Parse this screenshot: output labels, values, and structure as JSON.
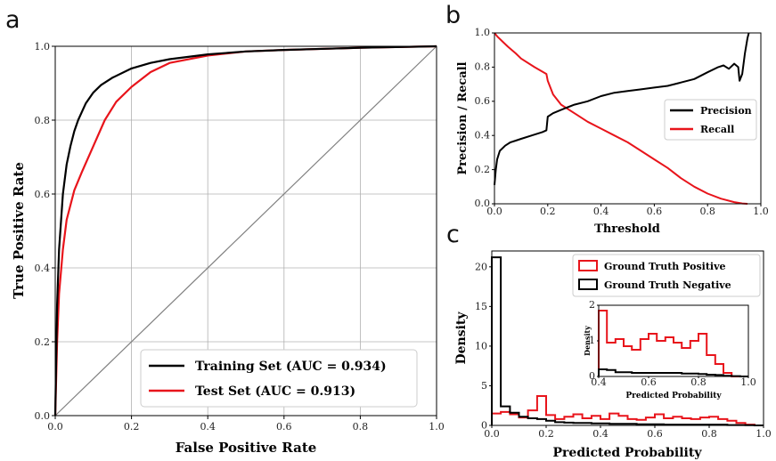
{
  "colors": {
    "train": "#000000",
    "test": "#e8141b",
    "precision": "#000000",
    "recall": "#e8141b",
    "positive": "#e8141b",
    "negative": "#000000",
    "grid": "#b0b0b0",
    "diagonal": "#808080"
  },
  "chart_data": [
    {
      "panel": "a",
      "type": "line",
      "xlabel": "False Positive Rate",
      "ylabel": "True Positive Rate",
      "xlim": [
        0,
        1
      ],
      "ylim": [
        0,
        1
      ],
      "xticks": [
        "0.0",
        "0.2",
        "0.4",
        "0.6",
        "0.8",
        "1.0"
      ],
      "yticks": [
        "0.0",
        "0.2",
        "0.4",
        "0.6",
        "0.8",
        "1.0"
      ],
      "grid": true,
      "legend_position": "lower-right",
      "series": [
        {
          "name": "Training Set (AUC = 0.934)",
          "x": [
            0,
            0.005,
            0.01,
            0.02,
            0.03,
            0.04,
            0.05,
            0.06,
            0.08,
            0.1,
            0.12,
            0.15,
            0.2,
            0.25,
            0.3,
            0.4,
            0.5,
            0.6,
            0.8,
            1.0
          ],
          "y": [
            0,
            0.3,
            0.45,
            0.6,
            0.68,
            0.73,
            0.77,
            0.8,
            0.845,
            0.875,
            0.895,
            0.915,
            0.94,
            0.955,
            0.965,
            0.978,
            0.986,
            0.99,
            0.996,
            1.0
          ]
        },
        {
          "name": "Test Set (AUC = 0.913)",
          "x": [
            0,
            0.005,
            0.01,
            0.02,
            0.03,
            0.05,
            0.07,
            0.1,
            0.13,
            0.16,
            0.2,
            0.25,
            0.3,
            0.4,
            0.5,
            0.6,
            0.8,
            1.0
          ],
          "y": [
            0,
            0.2,
            0.33,
            0.45,
            0.53,
            0.61,
            0.66,
            0.73,
            0.8,
            0.85,
            0.89,
            0.93,
            0.955,
            0.975,
            0.986,
            0.99,
            0.996,
            1.0
          ]
        }
      ],
      "diagonal": {
        "x": [
          0,
          1
        ],
        "y": [
          0,
          1
        ]
      }
    },
    {
      "panel": "b",
      "type": "line",
      "xlabel": "Threshold",
      "ylabel": "Precision / Recall",
      "xlim": [
        0,
        1
      ],
      "ylim": [
        0,
        1
      ],
      "xticks": [
        "0.0",
        "0.2",
        "0.4",
        "0.6",
        "0.8",
        "1.0"
      ],
      "yticks": [
        "0.0",
        "0.2",
        "0.4",
        "0.6",
        "0.8",
        "1.0"
      ],
      "grid": false,
      "legend_position": "center-right",
      "series": [
        {
          "name": "Precision",
          "x": [
            0.0,
            0.005,
            0.01,
            0.02,
            0.04,
            0.06,
            0.08,
            0.1,
            0.14,
            0.18,
            0.195,
            0.2,
            0.22,
            0.25,
            0.3,
            0.35,
            0.4,
            0.45,
            0.5,
            0.55,
            0.6,
            0.65,
            0.7,
            0.75,
            0.8,
            0.84,
            0.86,
            0.88,
            0.9,
            0.915,
            0.92,
            0.93,
            0.94,
            0.95,
            0.955
          ],
          "y": [
            0.11,
            0.2,
            0.26,
            0.31,
            0.34,
            0.36,
            0.37,
            0.38,
            0.4,
            0.42,
            0.43,
            0.51,
            0.53,
            0.55,
            0.58,
            0.6,
            0.63,
            0.65,
            0.66,
            0.67,
            0.68,
            0.69,
            0.71,
            0.73,
            0.77,
            0.8,
            0.81,
            0.79,
            0.82,
            0.8,
            0.72,
            0.76,
            0.88,
            0.97,
            1.0
          ]
        },
        {
          "name": "Recall",
          "x": [
            0.0,
            0.01,
            0.03,
            0.05,
            0.08,
            0.1,
            0.15,
            0.195,
            0.2,
            0.22,
            0.25,
            0.3,
            0.35,
            0.4,
            0.45,
            0.5,
            0.55,
            0.6,
            0.65,
            0.7,
            0.75,
            0.8,
            0.85,
            0.9,
            0.93,
            0.95
          ],
          "y": [
            1.0,
            0.98,
            0.95,
            0.92,
            0.88,
            0.85,
            0.8,
            0.76,
            0.72,
            0.64,
            0.58,
            0.53,
            0.48,
            0.44,
            0.4,
            0.36,
            0.31,
            0.26,
            0.21,
            0.15,
            0.1,
            0.06,
            0.03,
            0.01,
            0.002,
            0.0
          ]
        }
      ]
    },
    {
      "panel": "c",
      "type": "histogram",
      "xlabel": "Predicted Probability",
      "ylabel": "Density",
      "xlim": [
        0,
        1
      ],
      "ylim": [
        0,
        22
      ],
      "xticks": [
        "0.0",
        "0.2",
        "0.4",
        "0.6",
        "0.8",
        "1.0"
      ],
      "yticks": [
        "0",
        "5",
        "10",
        "15",
        "20"
      ],
      "grid": false,
      "legend_position": "upper-right",
      "bin_edges": [
        0.0,
        0.033,
        0.067,
        0.1,
        0.133,
        0.167,
        0.2,
        0.233,
        0.267,
        0.3,
        0.333,
        0.367,
        0.4,
        0.433,
        0.467,
        0.5,
        0.533,
        0.567,
        0.6,
        0.633,
        0.667,
        0.7,
        0.733,
        0.767,
        0.8,
        0.833,
        0.867,
        0.9,
        0.933,
        0.967,
        1.0
      ],
      "series": [
        {
          "name": "Ground Truth Positive",
          "values": [
            1.5,
            1.7,
            1.4,
            1.0,
            1.9,
            3.7,
            1.3,
            0.8,
            1.1,
            1.4,
            0.9,
            1.2,
            0.8,
            1.5,
            1.2,
            0.8,
            0.7,
            1.0,
            1.4,
            0.9,
            1.1,
            0.9,
            0.8,
            1.0,
            1.1,
            0.8,
            0.6,
            0.3,
            0.1,
            0.0
          ]
        },
        {
          "name": "Ground Truth Negative",
          "values": [
            21.2,
            2.4,
            1.6,
            1.1,
            0.9,
            0.8,
            0.6,
            0.4,
            0.35,
            0.3,
            0.3,
            0.25,
            0.25,
            0.2,
            0.2,
            0.2,
            0.15,
            0.15,
            0.15,
            0.1,
            0.1,
            0.1,
            0.1,
            0.1,
            0.1,
            0.1,
            0.05,
            0.05,
            0.03,
            0.0
          ]
        }
      ],
      "inset": {
        "xlabel": "Predicted Probability",
        "ylabel": "Density",
        "xlim": [
          0.4,
          1.0
        ],
        "ylim": [
          0,
          2
        ],
        "xticks": [
          "0.4",
          "0.6",
          "0.8",
          "1.0"
        ],
        "yticks": [
          "0",
          "1",
          "2"
        ],
        "bin_edges": [
          0.4,
          0.433,
          0.467,
          0.5,
          0.533,
          0.567,
          0.6,
          0.633,
          0.667,
          0.7,
          0.733,
          0.767,
          0.8,
          0.833,
          0.867,
          0.9,
          0.933,
          0.967,
          1.0
        ],
        "series": [
          {
            "name": "Ground Truth Positive",
            "values": [
              1.85,
              0.95,
              1.05,
              0.85,
              0.75,
              1.05,
              1.2,
              1.0,
              1.1,
              0.95,
              0.8,
              1.0,
              1.2,
              0.6,
              0.35,
              0.1,
              0.0,
              0.0
            ]
          },
          {
            "name": "Ground Truth Negative",
            "values": [
              0.2,
              0.18,
              0.12,
              0.12,
              0.1,
              0.1,
              0.1,
              0.1,
              0.1,
              0.1,
              0.08,
              0.08,
              0.07,
              0.05,
              0.04,
              0.02,
              0.01,
              0.0
            ]
          }
        ]
      }
    }
  ]
}
